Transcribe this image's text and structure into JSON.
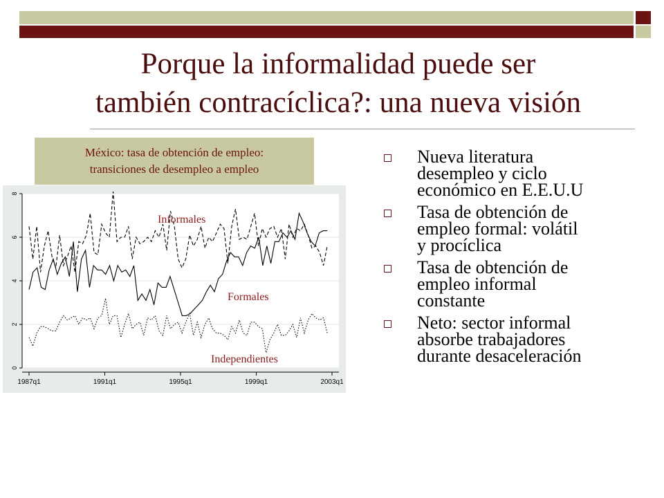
{
  "title": {
    "line1": "Porque la informalidad puede ser",
    "line2": "también contracíclica?: una nueva visión"
  },
  "chart_caption": {
    "line1": "México: tasa de obtención de empleo:",
    "line2": "transiciones de desempleo a empleo"
  },
  "bullets": [
    {
      "lines": [
        "Nueva literatura",
        "desempleo y ciclo",
        "económico en E.E.U.U"
      ]
    },
    {
      "lines": [
        "Tasa de obtención de",
        "empleo formal:  volátil",
        "y procíclica"
      ]
    },
    {
      "lines": [
        "Tasa de obtención de",
        "empleo informal",
        "constante"
      ]
    },
    {
      "lines": [
        "Neto: sector informal",
        "absorbe trabajadores",
        "durante desaceleración"
      ]
    }
  ],
  "colors": {
    "accent": "#6b1212",
    "khaki": "#c8c9a1",
    "label_text": "#8b1a1a",
    "plot_bg": "#e8ece9"
  },
  "icons": {
    "bullet": "hollow-square-icon"
  },
  "chart_data": {
    "type": "line",
    "xlabel": "",
    "ylabel": "",
    "x_tick_labels": [
      "1987q1",
      "1991q1",
      "1995q1",
      "1999q1",
      "2003q1"
    ],
    "x_range": [
      "1987q1",
      "2003q1"
    ],
    "ylim": [
      0,
      8
    ],
    "y_ticks": [
      0,
      2,
      4,
      6,
      8
    ],
    "grid": true,
    "series": [
      {
        "name": "Informales",
        "style": "dashed",
        "values": [
          6.5,
          5.0,
          6.5,
          4.4,
          5.6,
          6.3,
          5.1,
          4.6,
          6.1,
          4.7,
          5.1,
          5.6,
          4.4,
          5.8,
          5.7,
          6.1,
          7.1,
          5.3,
          5.2,
          6.6,
          6.2,
          6.0,
          8.1,
          5.8,
          6.0,
          6.0,
          6.5,
          5.0,
          6.0,
          5.7,
          5.8,
          6.0,
          5.8,
          6.3,
          6.0,
          6.6,
          5.4,
          7.2,
          6.5,
          5.0,
          4.6,
          5.0,
          6.1,
          5.6,
          5.9,
          6.5,
          5.5,
          6.0,
          5.8,
          6.2,
          6.6,
          6.4,
          4.8,
          6.5,
          7.3,
          5.9,
          6.0,
          5.9,
          6.5,
          7.1,
          5.6,
          6.4,
          6.0,
          6.4,
          6.5,
          6.0,
          6.4,
          5.0,
          6.6,
          6.0,
          6.4,
          6.3,
          6.6,
          6.1,
          5.5,
          5.6,
          5.3,
          4.7,
          5.6
        ]
      },
      {
        "name": "Formales",
        "style": "solid",
        "values": [
          3.6,
          4.4,
          4.6,
          3.7,
          3.6,
          4.5,
          5.0,
          4.3,
          4.8,
          5.1,
          4.2,
          5.8,
          3.5,
          5.0,
          5.4,
          3.7,
          4.7,
          4.5,
          4.5,
          4.3,
          4.7,
          4.0,
          4.7,
          4.4,
          4.5,
          4.2,
          4.7,
          3.1,
          3.4,
          3.1,
          3.6,
          2.9,
          3.9,
          3.7,
          3.7,
          4.2,
          3.6,
          3.0,
          2.4,
          2.4,
          2.5,
          2.7,
          2.9,
          3.1,
          3.5,
          3.8,
          3.5,
          4.1,
          4.3,
          4.9,
          5.3,
          5.1,
          5.1,
          4.7,
          5.3,
          5.6,
          5.5,
          6.0,
          4.7,
          5.6,
          4.8,
          5.8,
          5.8,
          6.2,
          6.0,
          6.3,
          5.9,
          7.1,
          6.7,
          6.2,
          5.8,
          5.6,
          6.2,
          6.3,
          6.3
        ]
      },
      {
        "name": "Independientes",
        "style": "dotted",
        "values": [
          1.4,
          1.0,
          1.6,
          1.9,
          1.9,
          1.8,
          1.7,
          1.7,
          2.1,
          2.4,
          2.2,
          2.3,
          2.4,
          2.0,
          2.3,
          2.2,
          2.3,
          1.8,
          2.3,
          2.4,
          3.2,
          2.0,
          2.4,
          2.4,
          1.4,
          2.0,
          2.5,
          1.8,
          2.0,
          2.1,
          1.5,
          2.3,
          2.2,
          2.4,
          1.7,
          1.5,
          2.4,
          1.8,
          2.0,
          2.1,
          1.6,
          2.1,
          2.5,
          1.5,
          2.1,
          1.4,
          2.0,
          2.3,
          1.8,
          1.6,
          1.6,
          1.5,
          1.3,
          1.9,
          1.6,
          2.2,
          1.6,
          1.5,
          2.1,
          2.1,
          1.9,
          1.8,
          0.7,
          1.3,
          1.6,
          2.0,
          1.5,
          1.5,
          1.7,
          2.0,
          1.4,
          2.3,
          1.6,
          2.2,
          2.5,
          2.3,
          2.2,
          2.3,
          1.6
        ]
      }
    ],
    "annotations": [
      "Informales",
      "Formales",
      "Independientes"
    ]
  }
}
